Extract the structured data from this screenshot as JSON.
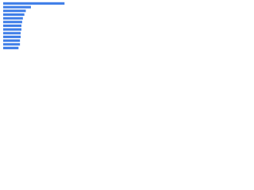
{
  "chart_data": {
    "type": "bar",
    "orientation": "horizontal",
    "values": [
      84,
      38,
      31,
      29,
      27,
      26,
      25,
      25,
      24,
      24,
      23,
      23,
      21
    ],
    "color": "#3f7ee8",
    "xlim": [
      0,
      100
    ]
  }
}
